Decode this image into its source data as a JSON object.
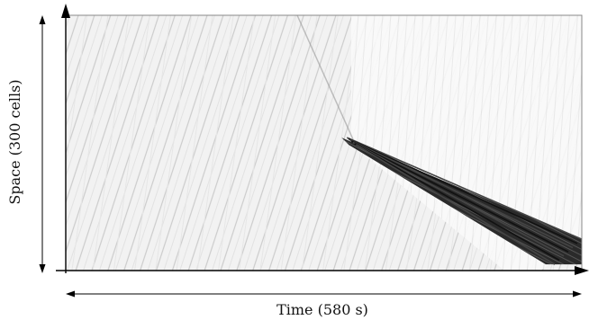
{
  "chart_data": {
    "type": "heatmap",
    "title": "",
    "xlabel": "Time (580 s)",
    "ylabel": "Space (300 cells)",
    "x_extent_s": 580,
    "y_extent_cells": 300,
    "colormap": "grayscale",
    "annotations": [
      {
        "kind": "light-stripes",
        "description": "many faint diagonal lines slanting downward over time"
      },
      {
        "kind": "dark-band",
        "description": "dense dark band propagating downward in the right half",
        "t_start_s": 310,
        "t_end_s": 580,
        "cell_start": 148,
        "cell_end": 278
      }
    ]
  },
  "colors": {
    "background": "#ffffff",
    "axis": "#000000",
    "band": "#1a1a1a"
  }
}
